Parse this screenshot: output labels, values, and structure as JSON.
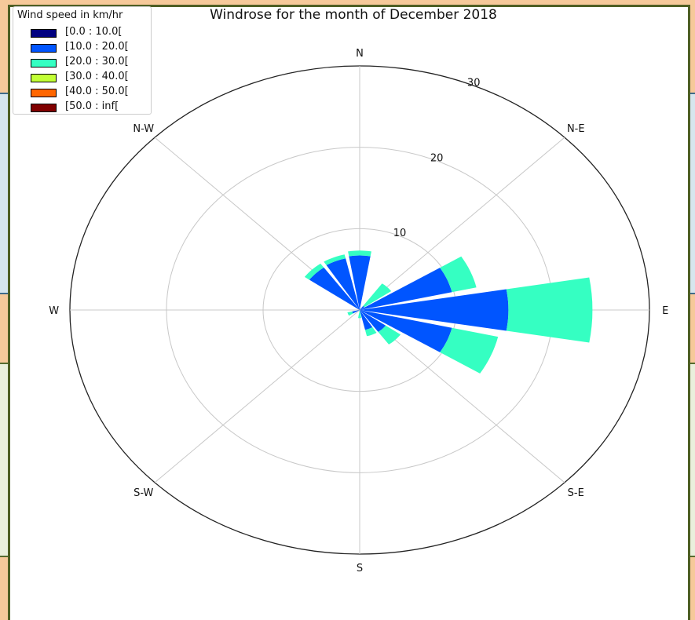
{
  "chart_data": {
    "type": "windrose",
    "title": "Windrose for the month of December 2018",
    "legend_title": "Wind speed in km/hr",
    "legend_position": "top-left",
    "bins": [
      {
        "label": "[0.0 : 10.0[",
        "color": "#000080"
      },
      {
        "label": "[10.0 : 20.0[",
        "color": "#0055ff"
      },
      {
        "label": "[20.0 : 30.0[",
        "color": "#35ffc2"
      },
      {
        "label": "[30.0 : 40.0[",
        "color": "#c2ff35"
      },
      {
        "label": "[40.0 : 50.0[",
        "color": "#ff6600"
      },
      {
        "label": "[50.0 : inf[",
        "color": "#800000"
      }
    ],
    "directions": [
      "N",
      "N-E",
      "E",
      "S-E",
      "S",
      "S-W",
      "W",
      "N-W"
    ],
    "radial_ticks": [
      10,
      20,
      30
    ],
    "rmax": 30,
    "sectors": [
      {
        "direction_deg": 0,
        "values": [
          0,
          6.7,
          7.3
        ]
      },
      {
        "direction_deg": 22.5,
        "values": [
          0,
          0,
          0
        ]
      },
      {
        "direction_deg": 45,
        "values": [
          0,
          0.6,
          4.0
        ]
      },
      {
        "direction_deg": 67.5,
        "values": [
          0,
          9.8,
          12.4
        ]
      },
      {
        "direction_deg": 90,
        "values": [
          0,
          15.4,
          24.1
        ]
      },
      {
        "direction_deg": 112.5,
        "values": [
          0,
          9.8,
          14.7
        ]
      },
      {
        "direction_deg": 135,
        "values": [
          0,
          3.3,
          5.2
        ]
      },
      {
        "direction_deg": 157.5,
        "values": [
          0,
          2.5,
          3.3
        ]
      },
      {
        "direction_deg": 180,
        "values": [
          0,
          0,
          1.0
        ]
      },
      {
        "direction_deg": 202.5,
        "values": [
          0,
          0,
          0
        ]
      },
      {
        "direction_deg": 225,
        "values": [
          0,
          0,
          0
        ]
      },
      {
        "direction_deg": 247.5,
        "values": [
          0,
          0.8,
          1.3
        ]
      },
      {
        "direction_deg": 270,
        "values": [
          0,
          0,
          0
        ]
      },
      {
        "direction_deg": 292.5,
        "values": [
          0,
          0,
          0
        ]
      },
      {
        "direction_deg": 315,
        "values": [
          0,
          6.4,
          7.0
        ]
      },
      {
        "direction_deg": 337.5,
        "values": [
          0,
          6.5,
          7.0
        ]
      }
    ]
  }
}
